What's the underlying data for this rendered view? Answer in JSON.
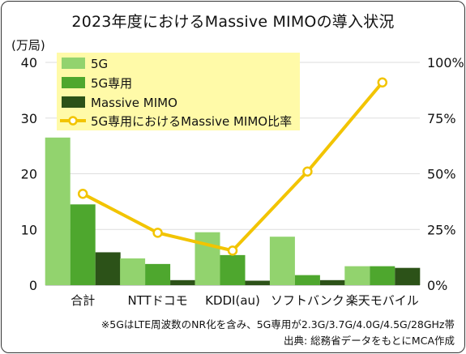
{
  "chart_data": {
    "type": "bar",
    "title": "2023年度におけるMassive MIMOの導入状況",
    "ylabel_left": "(万局)",
    "ylim_left": [
      0,
      40
    ],
    "yticks_left": [
      "0",
      "10",
      "20",
      "30",
      "40"
    ],
    "ylim_right": [
      0,
      100
    ],
    "yticks_right": [
      "0%",
      "25%",
      "50%",
      "75%",
      "100%"
    ],
    "categories": [
      "合計",
      "NTTドコモ",
      "KDDI(au)",
      "ソフトバンク",
      "楽天モバイル"
    ],
    "series": [
      {
        "name": "5G",
        "type": "bar",
        "color": "#92d36e",
        "values": [
          26.5,
          4.8,
          9.5,
          8.7,
          3.4
        ]
      },
      {
        "name": "5G専用",
        "type": "bar",
        "color": "#4ea72e",
        "values": [
          14.5,
          3.8,
          5.4,
          1.8,
          3.4
        ]
      },
      {
        "name": "Massive MIMO",
        "type": "bar",
        "color": "#2c5218",
        "values": [
          5.9,
          0.9,
          0.8,
          0.9,
          3.1
        ]
      },
      {
        "name": "5G専用におけるMassive MIMO比率",
        "type": "line",
        "axis": "right",
        "color": "#f2c400",
        "values": [
          41,
          23.5,
          15.5,
          51,
          91
        ]
      }
    ],
    "grid": true,
    "legend_position": "top-left",
    "legend_bg": "#fffaa8"
  },
  "footnotes": {
    "note": "※5GはLTE周波数のNR化を含み、5G専用が2.3G/3.7G/4.0G/4.5G/28GHz帯",
    "source": "出典: 総務省データをもとにMCA作成"
  }
}
